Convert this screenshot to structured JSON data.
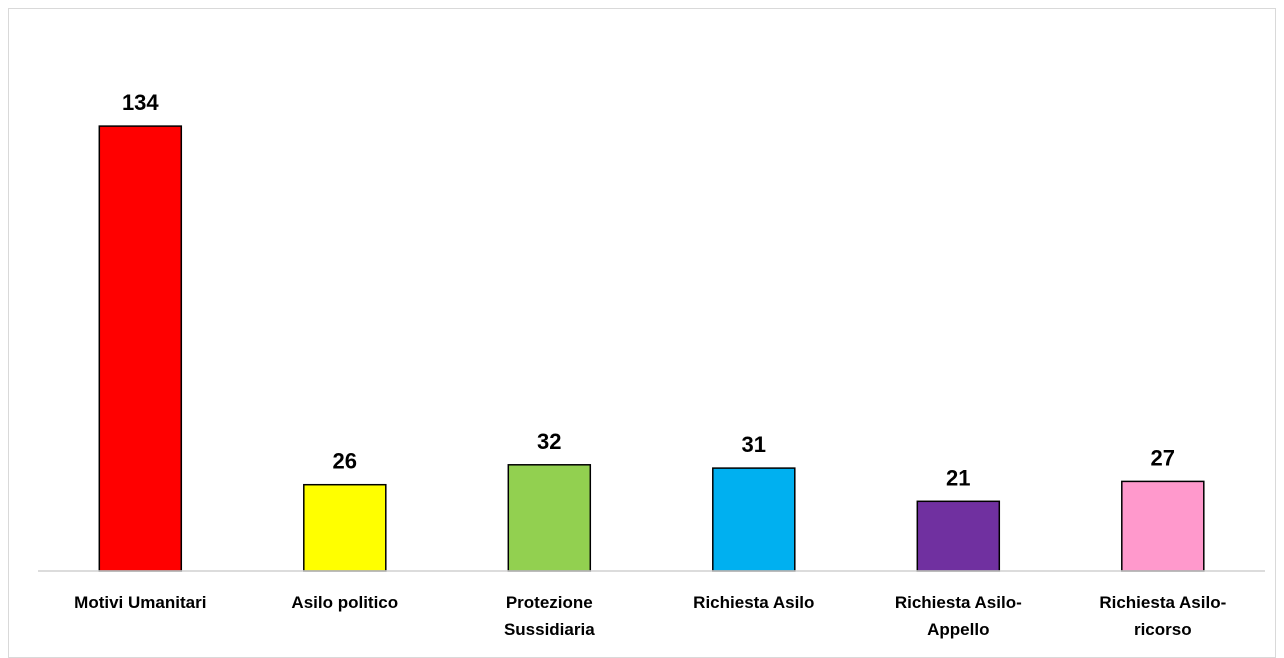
{
  "chart_data": {
    "type": "bar",
    "title": "",
    "xlabel": "",
    "ylabel": "",
    "ylim": [
      0,
      150
    ],
    "grid": false,
    "legend": "none",
    "categories": [
      [
        "Motivi Umanitari"
      ],
      [
        "Asilo politico"
      ],
      [
        "Protezione",
        "Sussidiaria"
      ],
      [
        "Richiesta Asilo"
      ],
      [
        "Richiesta Asilo-",
        "Appello"
      ],
      [
        "Richiesta Asilo-",
        "ricorso"
      ]
    ],
    "values": [
      134,
      26,
      32,
      31,
      21,
      27
    ],
    "colors": [
      "#ff0000",
      "#ffff00",
      "#92d050",
      "#00b0f0",
      "#7030a0",
      "#ff99cc"
    ]
  }
}
